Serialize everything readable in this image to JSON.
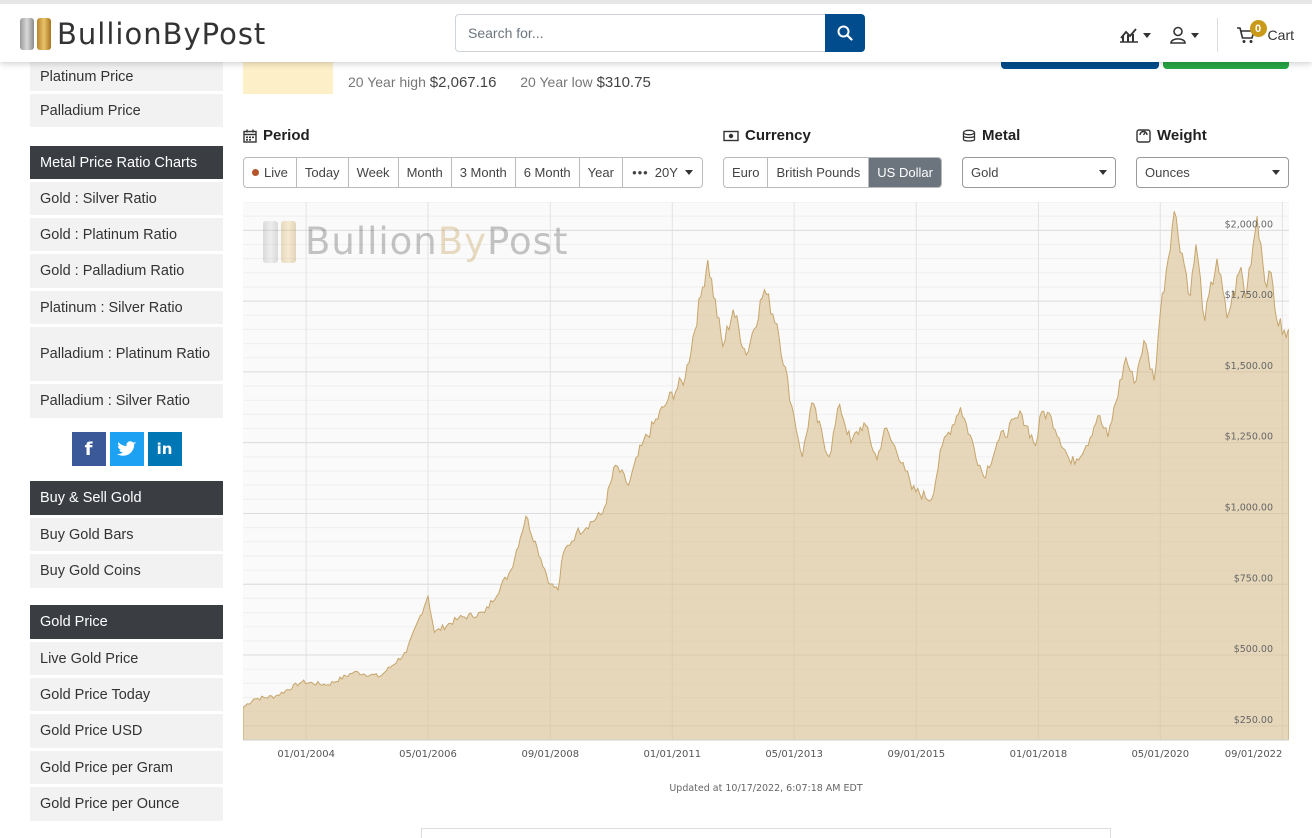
{
  "header": {
    "logo_text": "BullionByPost",
    "search_placeholder": "Search for...",
    "cart_label": "Cart",
    "cart_count": "0"
  },
  "sidebar": {
    "top_items": [
      "Platinum Price",
      "Palladium Price"
    ],
    "ratio_heading": "Metal Price Ratio Charts",
    "ratio_items": [
      "Gold : Silver Ratio",
      "Gold : Platinum Ratio",
      "Gold : Palladium Ratio",
      "Platinum : Silver Ratio",
      "Palladium : Platinum Ratio",
      "Palladium : Silver Ratio"
    ],
    "social": [
      "f",
      "t",
      "in"
    ],
    "buy_heading": "Buy & Sell Gold",
    "buy_items": [
      "Buy Gold Bars",
      "Buy Gold Coins"
    ],
    "price_heading": "Gold Price",
    "price_items": [
      "Live Gold Price",
      "Gold Price Today",
      "Gold Price USD",
      "Gold Price per Gram",
      "Gold Price per Ounce"
    ]
  },
  "stats": {
    "high_label": "20 Year high",
    "high_value": "$2,067.16",
    "low_label": "20 Year low",
    "low_value": "$310.75"
  },
  "controls": {
    "period_label": "Period",
    "periods": [
      "Live",
      "Today",
      "Week",
      "Month",
      "3 Month",
      "6 Month",
      "Year"
    ],
    "period_more": "20Y",
    "currency_label": "Currency",
    "currencies": [
      "Euro",
      "British Pounds",
      "US Dollar"
    ],
    "currency_selected": "US Dollar",
    "metal_label": "Metal",
    "metal_value": "Gold",
    "weight_label": "Weight",
    "weight_value": "Ounces"
  },
  "chart_data": {
    "type": "area",
    "title": "",
    "xlabel": "",
    "ylabel": "",
    "currency": "US Dollar",
    "metal": "Gold",
    "unit": "Ounces",
    "y_ticks": [
      "$250.00",
      "$500.00",
      "$750.00",
      "$1,000.00",
      "$1,250.00",
      "$1,500.00",
      "$1,750.00",
      "$2,000.00"
    ],
    "x_ticks": [
      "01/01/2004",
      "05/01/2006",
      "09/01/2008",
      "01/01/2011",
      "05/01/2013",
      "09/01/2015",
      "01/01/2018",
      "05/01/2020",
      "09/01/2022"
    ],
    "ylim": [
      200,
      2100
    ],
    "xlim": [
      "2002-10-17",
      "2022-10-17"
    ],
    "grid": true,
    "color": "#d9bf8f",
    "series": [
      {
        "values": [
          [
            "2002-10-17",
            315
          ],
          [
            "2003-01-01",
            345
          ],
          [
            "2003-06-01",
            355
          ],
          [
            "2003-12-01",
            405
          ],
          [
            "2004-06-01",
            395
          ],
          [
            "2004-12-01",
            440
          ],
          [
            "2005-06-01",
            425
          ],
          [
            "2005-12-01",
            510
          ],
          [
            "2006-05-01",
            710
          ],
          [
            "2006-06-15",
            580
          ],
          [
            "2006-12-01",
            630
          ],
          [
            "2007-06-01",
            650
          ],
          [
            "2007-12-01",
            800
          ],
          [
            "2008-03-15",
            990
          ],
          [
            "2008-06-01",
            880
          ],
          [
            "2008-09-01",
            750
          ],
          [
            "2008-10-25",
            730
          ],
          [
            "2008-12-01",
            860
          ],
          [
            "2009-03-01",
            930
          ],
          [
            "2009-09-01",
            1000
          ],
          [
            "2009-12-01",
            1170
          ],
          [
            "2010-03-01",
            1100
          ],
          [
            "2010-06-01",
            1240
          ],
          [
            "2010-12-01",
            1400
          ],
          [
            "2011-04-01",
            1480
          ],
          [
            "2011-08-01",
            1800
          ],
          [
            "2011-09-06",
            1895
          ],
          [
            "2011-12-20",
            1590
          ],
          [
            "2012-03-01",
            1720
          ],
          [
            "2012-06-01",
            1560
          ],
          [
            "2012-10-05",
            1790
          ],
          [
            "2013-01-01",
            1670
          ],
          [
            "2013-04-15",
            1380
          ],
          [
            "2013-06-28",
            1200
          ],
          [
            "2013-09-01",
            1390
          ],
          [
            "2013-12-31",
            1200
          ],
          [
            "2014-03-15",
            1385
          ],
          [
            "2014-06-01",
            1250
          ],
          [
            "2014-09-01",
            1320
          ],
          [
            "2014-12-01",
            1190
          ],
          [
            "2015-01-22",
            1300
          ],
          [
            "2015-06-01",
            1180
          ],
          [
            "2015-08-01",
            1085
          ],
          [
            "2015-12-17",
            1050
          ],
          [
            "2016-03-01",
            1240
          ],
          [
            "2016-07-06",
            1375
          ],
          [
            "2016-12-15",
            1130
          ],
          [
            "2017-04-01",
            1260
          ],
          [
            "2017-09-08",
            1350
          ],
          [
            "2017-12-12",
            1240
          ],
          [
            "2018-01-25",
            1360
          ],
          [
            "2018-04-01",
            1340
          ],
          [
            "2018-08-16",
            1175
          ],
          [
            "2018-12-01",
            1240
          ],
          [
            "2019-02-20",
            1345
          ],
          [
            "2019-05-01",
            1270
          ],
          [
            "2019-09-04",
            1550
          ],
          [
            "2019-11-01",
            1460
          ],
          [
            "2020-01-08",
            1610
          ],
          [
            "2020-03-19",
            1470
          ],
          [
            "2020-05-01",
            1710
          ],
          [
            "2020-08-06",
            2067
          ],
          [
            "2020-11-27",
            1770
          ],
          [
            "2021-01-05",
            1950
          ],
          [
            "2021-03-08",
            1680
          ],
          [
            "2021-06-01",
            1900
          ],
          [
            "2021-08-09",
            1690
          ],
          [
            "2021-11-16",
            1870
          ],
          [
            "2021-12-15",
            1760
          ],
          [
            "2022-03-08",
            2050
          ],
          [
            "2022-05-15",
            1800
          ],
          [
            "2022-06-15",
            1850
          ],
          [
            "2022-07-21",
            1690
          ],
          [
            "2022-09-28",
            1620
          ],
          [
            "2022-10-17",
            1650
          ]
        ]
      }
    ]
  },
  "chart_footer": "Updated at 10/17/2022, 6:07:18 AM EDT"
}
